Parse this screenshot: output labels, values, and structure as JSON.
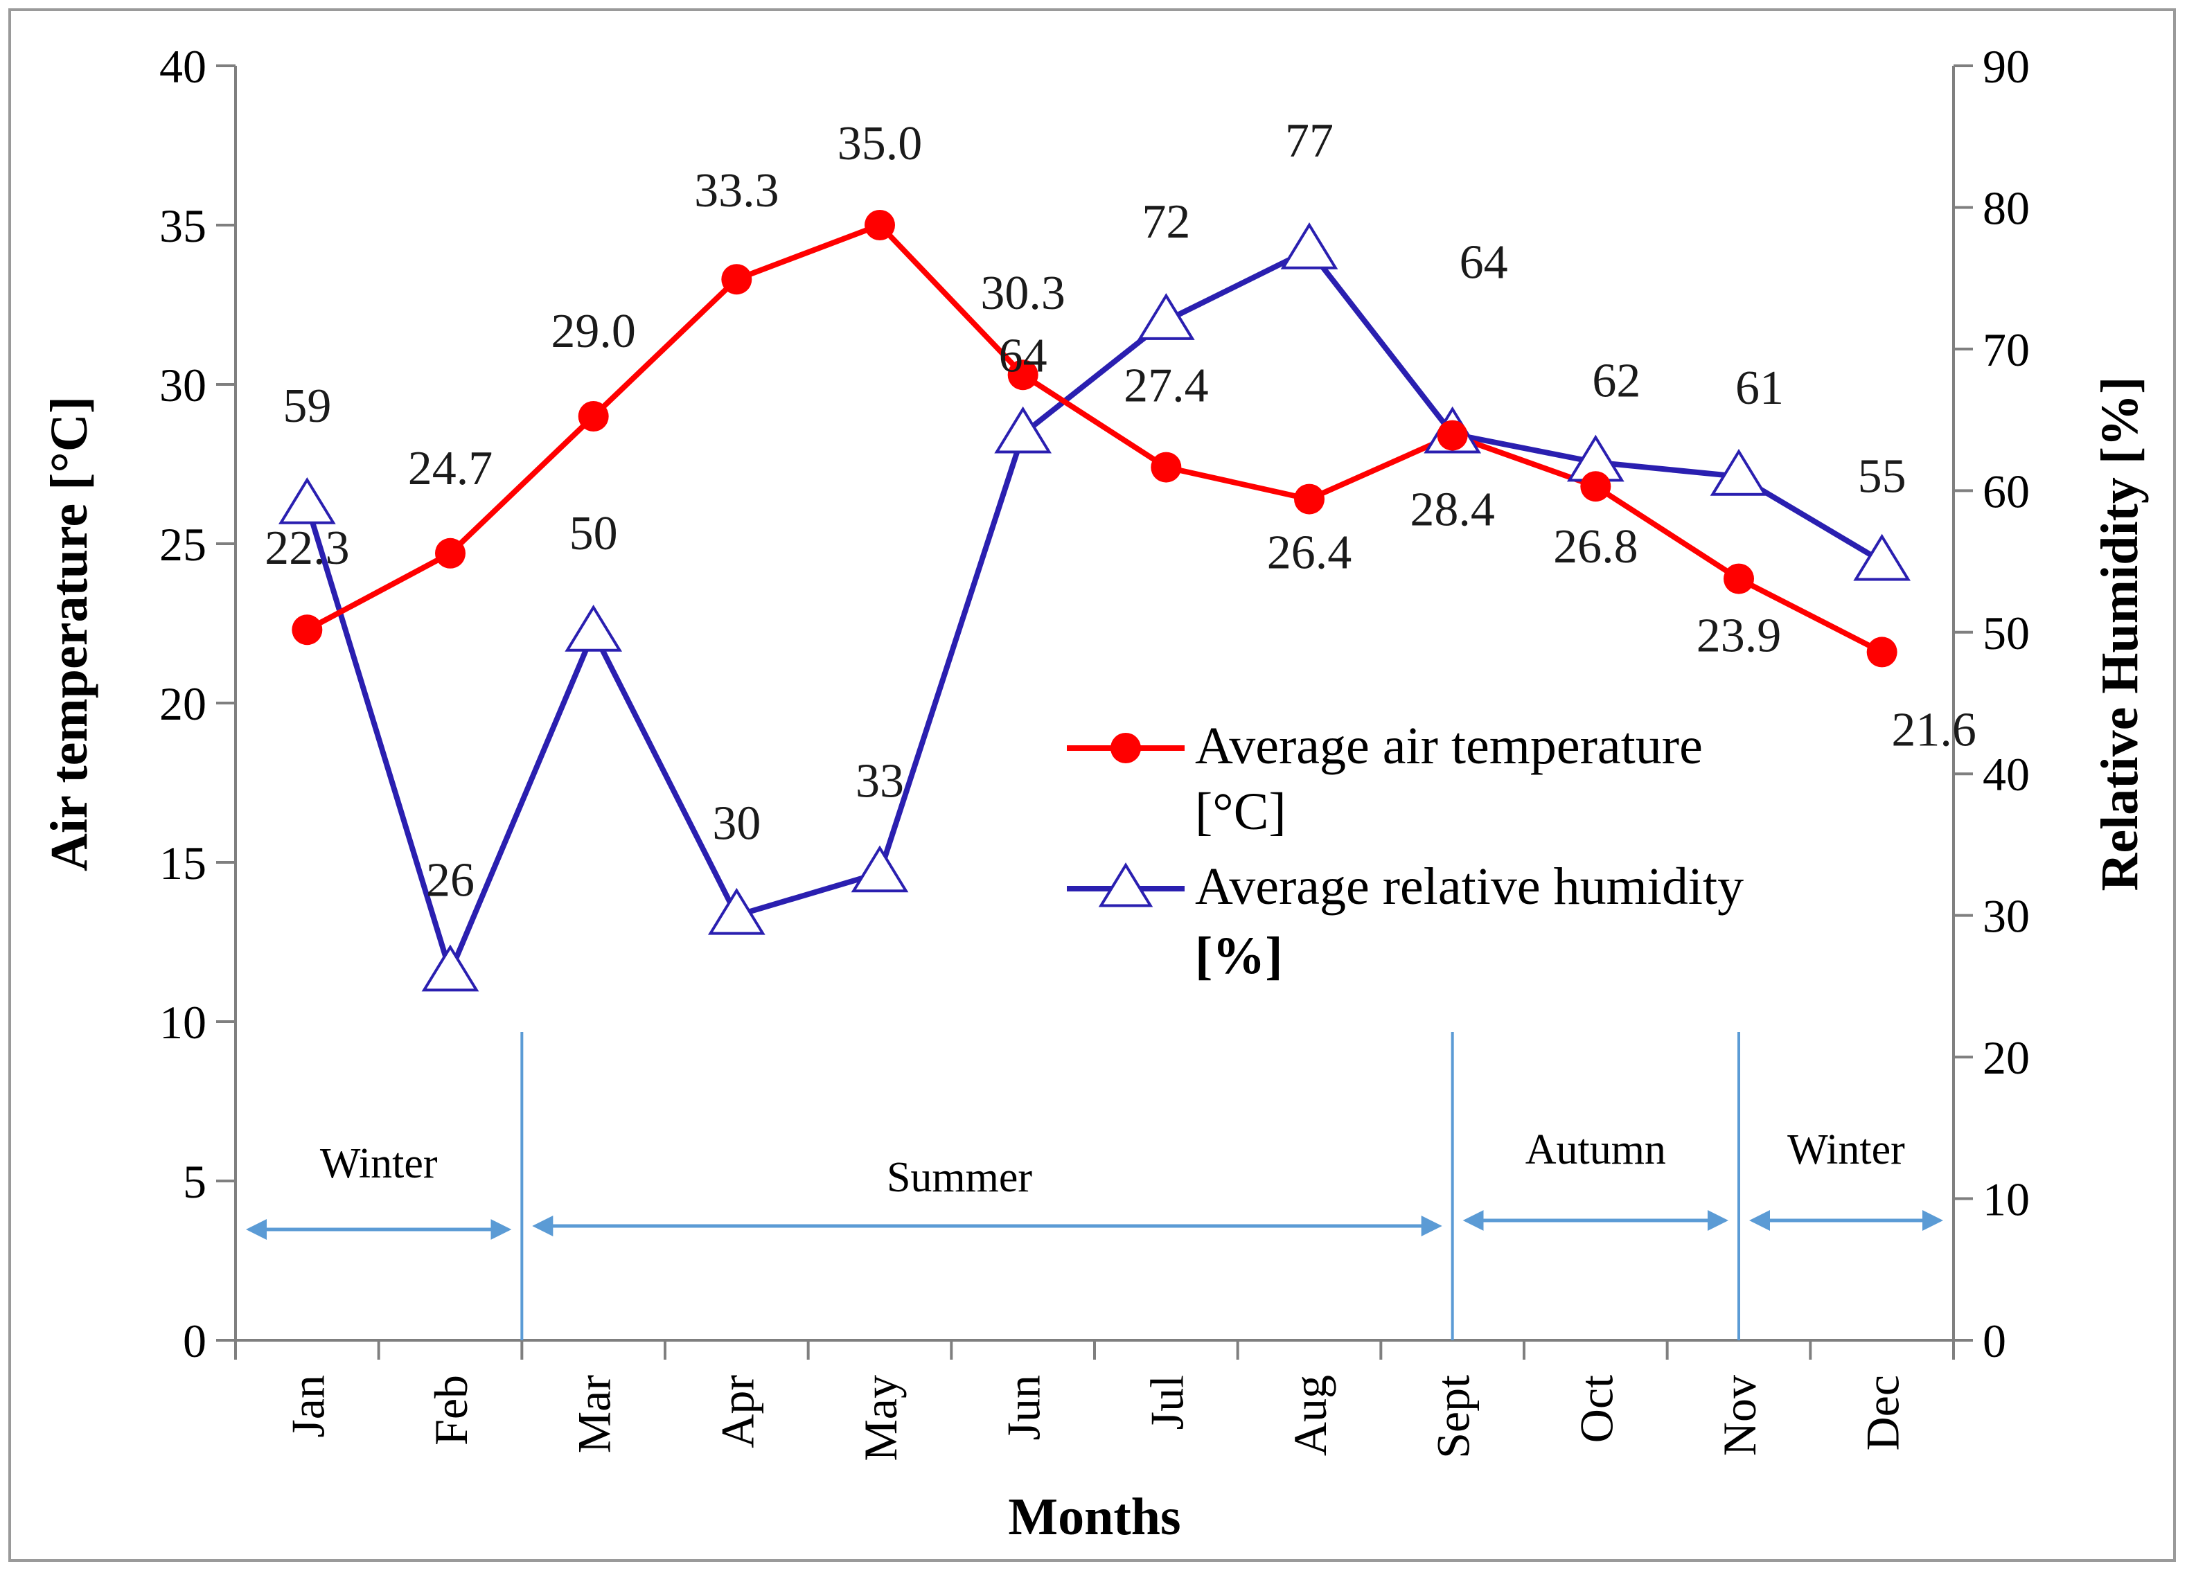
{
  "chart_data": {
    "type": "line",
    "categories": [
      "Jan",
      "Feb",
      "Mar",
      "Apr",
      "May",
      "Jun",
      "Jul",
      "Aug",
      "Sept",
      "Oct",
      "Nov",
      "Dec"
    ],
    "xlabel": "Months",
    "ylabel_left": "Air temperature [°C]",
    "ylabel_right": "Relative Humidity [%]",
    "ylim_left": [
      0,
      40
    ],
    "yticks_left": [
      "0",
      "5",
      "10",
      "15",
      "20",
      "25",
      "30",
      "35",
      "40"
    ],
    "ylim_right": [
      0,
      90
    ],
    "yticks_right": [
      "0",
      "10",
      "20",
      "30",
      "40",
      "50",
      "60",
      "70",
      "80",
      "90"
    ],
    "series": [
      {
        "name": "Average air temperature [°C]",
        "legend_lines": [
          "Average air temperature",
          "[°C]"
        ],
        "axis": "left",
        "color": "#ff0000",
        "marker": "circle",
        "values": [
          22.3,
          24.7,
          29.0,
          33.3,
          35.0,
          30.3,
          27.4,
          26.4,
          28.4,
          26.8,
          23.9,
          21.6
        ],
        "labels": [
          "22.3",
          "24.7",
          "29.0",
          "33.3",
          "35.0",
          "30.3",
          "27.4",
          "26.4",
          "28.4",
          "26.8",
          "23.9",
          "21.6"
        ]
      },
      {
        "name": "Average relative humidity [%]",
        "legend_lines": [
          "Average relative humidity",
          "[%]"
        ],
        "axis": "right",
        "color": "#2a1fb0",
        "marker": "triangle",
        "values": [
          59,
          26,
          50,
          30,
          33,
          64,
          72,
          77,
          64,
          62,
          61,
          55
        ],
        "labels": [
          "59",
          "26",
          "50",
          "30",
          "33",
          "64",
          "72",
          "77",
          "64",
          "62",
          "61",
          "55"
        ]
      }
    ],
    "seasons": [
      {
        "label": "Winter",
        "start_month": 0,
        "end_month": 2
      },
      {
        "label": "Summer",
        "start_month": 2,
        "end_month": 8.5
      },
      {
        "label": "Autumn",
        "start_month": 8.5,
        "end_month": 10.5
      },
      {
        "label": "Winter",
        "start_month": 10.5,
        "end_month": 12
      }
    ],
    "season_arrow_color": "#5b9bd5",
    "legend_position": "center-right"
  }
}
